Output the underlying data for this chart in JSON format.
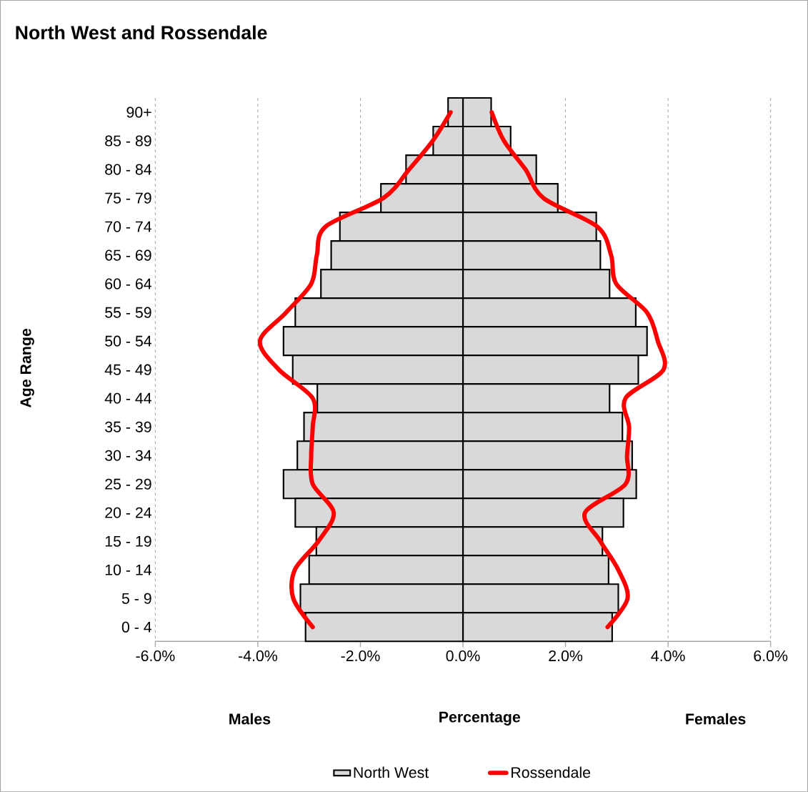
{
  "chart_data": {
    "type": "bar",
    "orientation": "horizontal",
    "title": "North West and Rossendale",
    "xlabel": "Percentage",
    "ylabel": "Age Range",
    "annotations": [
      "Males",
      "Females"
    ],
    "categories": [
      "90+",
      "85 - 89",
      "80 - 84",
      "75 - 79",
      "70 - 74",
      "65 - 69",
      "60 - 64",
      "55 - 59",
      "50 - 54",
      "45 - 49",
      "40 - 44",
      "35 - 39",
      "30 - 34",
      "25 - 29",
      "20 - 24",
      "15 - 19",
      "10 - 14",
      "5 - 9",
      "0 - 4"
    ],
    "series": [
      {
        "name": "North West",
        "color": "#d9d9d9",
        "values": [
          -0.29,
          -0.58,
          -1.11,
          -1.6,
          -2.4,
          -2.57,
          -2.77,
          -3.27,
          -3.5,
          -3.32,
          -2.84,
          -3.1,
          -3.23,
          -3.5,
          -3.27,
          -2.86,
          -3.0,
          -3.17,
          -3.07
        ]
      },
      {
        "color": "#d9d9d9",
        "values": [
          0.55,
          0.93,
          1.43,
          1.85,
          2.6,
          2.68,
          2.86,
          3.37,
          3.59,
          3.42,
          2.86,
          3.11,
          3.3,
          3.38,
          3.13,
          2.72,
          2.84,
          3.03,
          2.91
        ]
      },
      {
        "name": "Rossendale",
        "type": "line",
        "color": "#ff0000",
        "values": [
          -0.24,
          -0.59,
          -1.05,
          -1.55,
          -2.68,
          -2.85,
          -2.96,
          -3.45,
          -3.96,
          -3.59,
          -2.93,
          -2.93,
          -2.96,
          -2.93,
          -2.52,
          -2.82,
          -3.28,
          -3.31,
          -2.93
        ]
      },
      {
        "type": "line",
        "color": "#ff0000",
        "values": [
          0.56,
          0.8,
          1.22,
          1.57,
          2.62,
          2.89,
          2.99,
          3.59,
          3.8,
          3.91,
          3.17,
          3.24,
          3.2,
          3.17,
          2.38,
          2.68,
          3.03,
          3.21,
          2.82
        ]
      }
    ],
    "xlim": [
      -6,
      6
    ],
    "xticks": [
      {
        "value": -6,
        "label": "-6.0%"
      },
      {
        "value": -4,
        "label": "-4.0%"
      },
      {
        "value": -2,
        "label": "-2.0%"
      },
      {
        "value": 0,
        "label": "0.0%"
      },
      {
        "value": 2,
        "label": "2.0%"
      },
      {
        "value": 4,
        "label": "4.0%"
      },
      {
        "value": 6,
        "label": "6.0%"
      }
    ],
    "grid": "x",
    "legend": "bottom",
    "stacked": true
  }
}
